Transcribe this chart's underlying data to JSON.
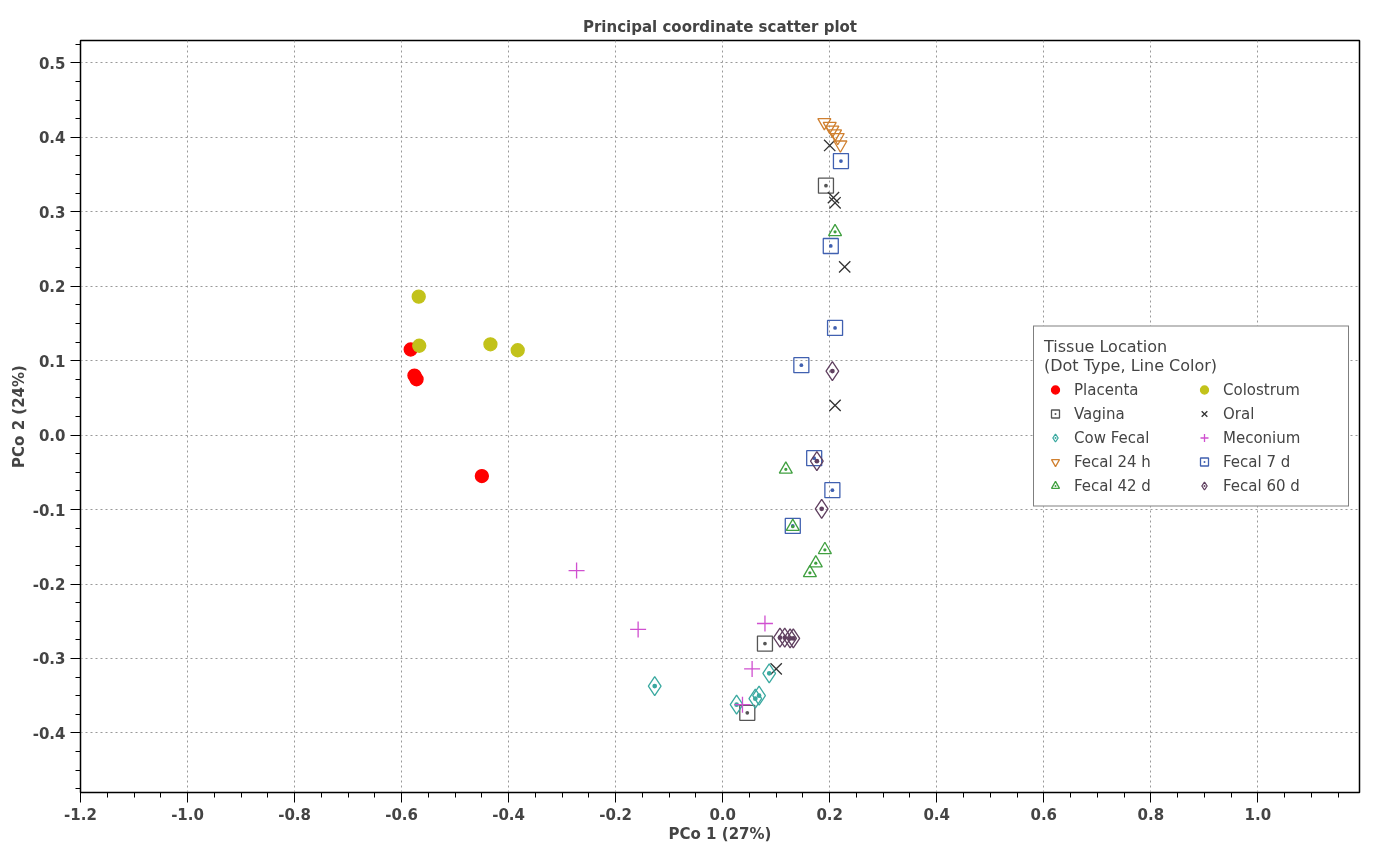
{
  "chart_data": {
    "type": "scatter",
    "title": "Principal coordinate scatter plot",
    "xlabel": "PCo 1 (27%)",
    "ylabel": "PCo 2 (24%)",
    "legend_title": "Tissue Location\n(Dot Type, Line Color)",
    "xlim": [
      -1.2,
      1.19
    ],
    "ylim": [
      -0.48,
      0.53
    ],
    "xticks": [
      -1.2,
      {
        "value": -1,
        "label": "-1.0"
      },
      -0.8,
      -0.6,
      -0.4,
      -0.2,
      {
        "value": 0,
        "label": "0.0"
      },
      0.2,
      0.4,
      0.6,
      0.8,
      {
        "value": 1,
        "label": "1.0"
      }
    ],
    "yticks": [
      -0.4,
      -0.3,
      -0.2,
      -0.1,
      {
        "value": 0,
        "label": "0.0"
      },
      0.1,
      0.2,
      0.3,
      0.4,
      0.5
    ],
    "grid": true,
    "legend": "right",
    "series": [
      {
        "name": "Placenta",
        "color": "#ff0000",
        "marker": "circle",
        "x": [
          -0.583,
          -0.576,
          -0.572,
          -0.45
        ],
        "values": [
          0.115,
          0.08,
          0.075,
          -0.055
        ]
      },
      {
        "name": "Colostrum",
        "color": "#c2c21a",
        "marker": "circle",
        "x": [
          -0.568,
          -0.567,
          -0.434,
          -0.383
        ],
        "values": [
          0.186,
          0.12,
          0.122,
          0.114
        ]
      },
      {
        "name": "Vagina",
        "color": "#555555",
        "marker": "square",
        "x": [
          0.193,
          0.079,
          0.046
        ],
        "values": [
          0.335,
          -0.28,
          -0.373
        ]
      },
      {
        "name": "Oral",
        "color": "#333333",
        "marker": "x",
        "x": [
          0.2,
          0.207,
          0.21,
          0.228,
          0.21,
          0.1
        ],
        "values": [
          0.389,
          0.319,
          0.312,
          0.226,
          0.04,
          -0.314
        ]
      },
      {
        "name": "Cow Fecal",
        "color": "#3aa9a0",
        "marker": "diamond",
        "x": [
          -0.127,
          0.087,
          0.068,
          0.061,
          0.026
        ],
        "values": [
          -0.337,
          -0.32,
          -0.35,
          -0.354,
          -0.362
        ]
      },
      {
        "name": "Meconium",
        "color": "#d050d0",
        "marker": "plus",
        "x": [
          -0.273,
          -0.158,
          0.079,
          0.055,
          0.037
        ],
        "values": [
          -0.182,
          -0.261,
          -0.253,
          -0.314,
          -0.362
        ]
      },
      {
        "name": "Fecal 24 h",
        "color": "#d08030",
        "marker": "triangle_down",
        "x": [
          0.19,
          0.2,
          0.205,
          0.21,
          0.215,
          0.22
        ],
        "values": [
          0.42,
          0.415,
          0.41,
          0.405,
          0.4,
          0.39
        ]
      },
      {
        "name": "Fecal 7 d",
        "color": "#4060b0",
        "marker": "square",
        "x": [
          0.221,
          0.202,
          0.21,
          0.147,
          0.171,
          0.205,
          0.131
        ],
        "values": [
          0.368,
          0.254,
          0.144,
          0.094,
          -0.031,
          -0.074,
          -0.122
        ]
      },
      {
        "name": "Fecal 42 d",
        "color": "#40a040",
        "marker": "triangle",
        "x": [
          0.21,
          0.118,
          0.131,
          0.191,
          0.174,
          0.163
        ],
        "values": [
          0.273,
          -0.046,
          -0.123,
          -0.154,
          -0.172,
          -0.185
        ]
      },
      {
        "name": "Fecal 60 d",
        "color": "#604060",
        "marker": "diamond",
        "x": [
          0.205,
          0.176,
          0.185,
          0.107,
          0.116,
          0.126,
          0.132
        ],
        "values": [
          0.086,
          -0.035,
          -0.099,
          -0.272,
          -0.272,
          -0.273,
          -0.273
        ]
      }
    ]
  }
}
